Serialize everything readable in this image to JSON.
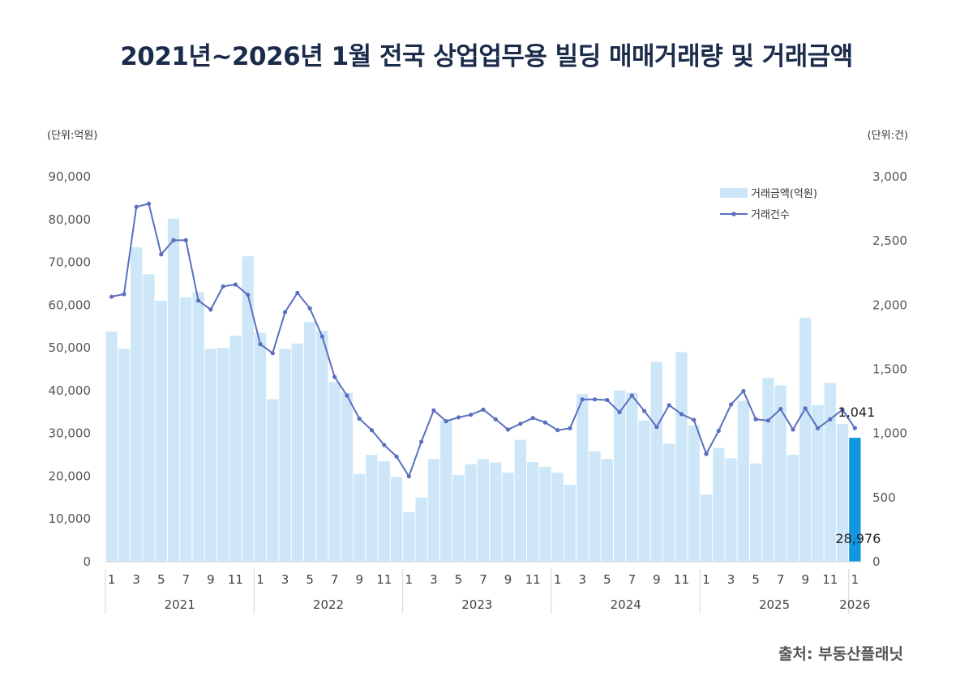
{
  "title": "2021년~2026년 1월 전국 상업업무용 빌딩 매매거래량 및 거래금액",
  "left_unit": "(단위:억원)",
  "right_unit": "(단위:건)",
  "source": "출처: 부동산플래닛",
  "colors": {
    "bar": "#cde7f8",
    "bar_highlight": "#1296e0",
    "line": "#5b6fbf",
    "title": "#1b2b4a"
  },
  "chart_data": {
    "type": "bar",
    "title": "2021년~2026년 1월 전국 상업업무용 빌딩 매매거래량 및 거래금액",
    "x_month_labels": [
      "1",
      "",
      "3",
      "",
      "5",
      "",
      "7",
      "",
      "9",
      "",
      "11",
      "",
      "1",
      "",
      "3",
      "",
      "5",
      "",
      "7",
      "",
      "9",
      "",
      "11",
      "",
      "1",
      "",
      "3",
      "",
      "5",
      "",
      "7",
      "",
      "9",
      "",
      "11",
      "",
      "1",
      "",
      "3",
      "",
      "5",
      "",
      "7",
      "",
      "9",
      "",
      "11",
      "",
      "1",
      "",
      "3",
      "",
      "5",
      "",
      "7",
      "",
      "9",
      "",
      "11",
      "",
      "1"
    ],
    "year_labels": [
      "2021",
      "2022",
      "2023",
      "2024",
      "2025",
      "2026"
    ],
    "year_month_counts": [
      12,
      12,
      12,
      12,
      12,
      1
    ],
    "y_left": {
      "ticks": [
        "0",
        "10,000",
        "20,000",
        "30,000",
        "40,000",
        "50,000",
        "60,000",
        "70,000",
        "80,000",
        "90,000"
      ],
      "range": [
        0,
        90000
      ]
    },
    "y_right": {
      "ticks": [
        "0",
        "500",
        "1,000",
        "1,500",
        "2,000",
        "2,500",
        "3,000"
      ],
      "range": [
        0,
        3000
      ]
    },
    "legend_position": "top-right",
    "series": [
      {
        "name": "거래금액(억원)",
        "type": "bar",
        "axis": "left",
        "values": [
          53800,
          49800,
          73500,
          67200,
          61000,
          80200,
          61800,
          63000,
          49800,
          50000,
          52800,
          71400,
          53500,
          38000,
          49800,
          51000,
          56000,
          54000,
          42000,
          39500,
          20500,
          25000,
          23500,
          19800,
          11600,
          15000,
          24000,
          33000,
          20300,
          22800,
          24000,
          23200,
          20800,
          28500,
          23300,
          22200,
          20800,
          18000,
          39200,
          25800,
          24000,
          40000,
          39500,
          33000,
          46700,
          27600,
          49000,
          31900,
          15700,
          26600,
          24200,
          37600,
          23000,
          43000,
          41200,
          25000,
          57000,
          36600,
          41800,
          32200,
          28976
        ]
      },
      {
        "name": "거래건수",
        "type": "line",
        "axis": "right",
        "values": [
          2065,
          2085,
          2765,
          2790,
          2395,
          2505,
          2505,
          2035,
          1965,
          2145,
          2160,
          2080,
          1695,
          1625,
          1945,
          2095,
          1975,
          1755,
          1440,
          1295,
          1115,
          1025,
          910,
          820,
          665,
          935,
          1180,
          1095,
          1125,
          1145,
          1185,
          1110,
          1030,
          1075,
          1120,
          1085,
          1025,
          1040,
          1265,
          1265,
          1260,
          1165,
          1295,
          1175,
          1050,
          1220,
          1150,
          1105,
          840,
          1020,
          1225,
          1330,
          1110,
          1100,
          1190,
          1030,
          1195,
          1040,
          1110,
          1185,
          1041
        ]
      }
    ],
    "annotations": [
      {
        "text": "1,041",
        "series": "거래건수",
        "index": 60
      },
      {
        "text": "28,976",
        "series": "거래금액(억원)",
        "index": 60
      }
    ]
  }
}
